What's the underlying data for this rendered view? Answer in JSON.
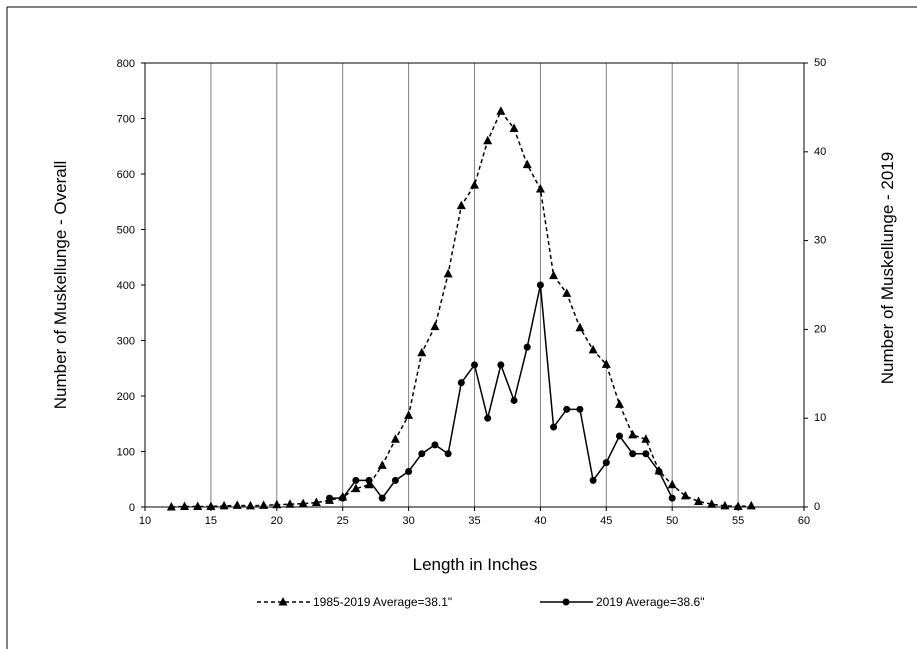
{
  "chart_data": {
    "type": "line",
    "x_label": "Length in Inches",
    "y_label": "Number  of Muskellunge - Overall",
    "y2_label": "Number  of Muskellunge - 2019",
    "xlim": [
      10,
      60
    ],
    "xticks": [
      10,
      15,
      20,
      25,
      30,
      35,
      40,
      45,
      50,
      55,
      60
    ],
    "ylim": [
      0,
      800
    ],
    "yticks": [
      0,
      100,
      200,
      300,
      400,
      500,
      600,
      700,
      800
    ],
    "y2lim": [
      0,
      50
    ],
    "y2ticks": [
      0,
      10,
      20,
      30,
      40,
      50
    ],
    "grid": "x",
    "series": [
      {
        "name": "1985-2019 Average=38.1\"",
        "color": "#000000",
        "marker": "triangle",
        "dashed": true,
        "x": [
          12,
          13,
          14,
          15,
          16,
          17,
          18,
          19,
          20,
          21,
          22,
          23,
          24,
          25,
          26,
          27,
          28,
          29,
          30,
          31,
          32,
          33,
          34,
          35,
          36,
          37,
          38,
          39,
          40,
          41,
          42,
          43,
          44,
          45,
          46,
          47,
          48,
          49,
          50,
          51,
          52,
          53,
          54,
          55,
          56
        ],
        "values": [
          0,
          1,
          1,
          1,
          2,
          3,
          2,
          3,
          4,
          5,
          6,
          8,
          12,
          18,
          33,
          40,
          75,
          122,
          165,
          278,
          325,
          420,
          543,
          580,
          660,
          713,
          682,
          617,
          573,
          417,
          385,
          323,
          283,
          257,
          185,
          130,
          122,
          65,
          40,
          20,
          10,
          5,
          2,
          1,
          2
        ]
      },
      {
        "name": "2019 Average=38.6\"",
        "color": "#000000",
        "marker": "circle",
        "dashed": false,
        "axis": "y2",
        "x": [
          24,
          25,
          26,
          27,
          28,
          29,
          30,
          31,
          32,
          33,
          34,
          35,
          36,
          37,
          38,
          39,
          40,
          41,
          42,
          43,
          44,
          45,
          46,
          47,
          48,
          49,
          50
        ],
        "values": [
          1,
          1,
          3,
          3,
          1,
          3,
          4,
          6,
          7,
          6,
          14,
          16,
          10,
          16,
          12,
          18,
          25,
          9,
          11,
          11,
          3,
          5,
          8,
          6,
          6,
          4,
          1
        ]
      }
    ]
  }
}
